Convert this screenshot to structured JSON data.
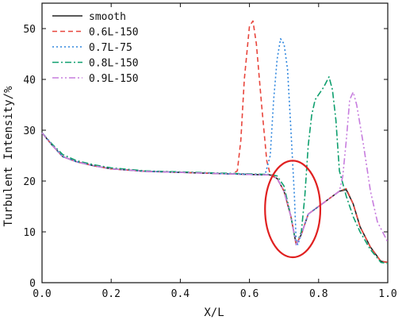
{
  "chart_data": {
    "type": "line",
    "xlabel": "X/L",
    "ylabel": "Turbulent Intensity/%",
    "xlim": [
      0,
      1
    ],
    "ylim": [
      0,
      55
    ],
    "xticks": [
      0,
      0.2,
      0.4,
      0.6,
      0.8,
      1.0
    ],
    "xtick_labels": [
      "0.0",
      "0.2",
      "0.4",
      "0.6",
      "0.8",
      "1.0"
    ],
    "yticks": [
      0,
      10,
      20,
      30,
      40,
      50
    ],
    "ytick_labels": [
      "0",
      "10",
      "20",
      "30",
      "40",
      "50"
    ],
    "grid": false,
    "legend_position": "top-left",
    "series": [
      {
        "name": "smooth",
        "color": "#222222",
        "dash": "solid",
        "x": [
          0,
          0.03,
          0.06,
          0.1,
          0.15,
          0.2,
          0.3,
          0.4,
          0.5,
          0.6,
          0.66,
          0.68,
          0.7,
          0.72,
          0.735,
          0.75,
          0.77,
          0.8,
          0.83,
          0.86,
          0.88,
          0.9,
          0.92,
          0.95,
          0.98,
          1.0
        ],
        "y": [
          29.5,
          27,
          24.8,
          23.8,
          23,
          22.4,
          21.9,
          21.7,
          21.5,
          21.3,
          21.2,
          20.5,
          18,
          13,
          7.5,
          9.5,
          13.5,
          15,
          16.5,
          18,
          18.3,
          15.5,
          11,
          7,
          4.2,
          4
        ]
      },
      {
        "name": "0.6L-150",
        "color": "#e8453c",
        "dash": "6,4",
        "x": [
          0,
          0.03,
          0.06,
          0.1,
          0.15,
          0.2,
          0.3,
          0.4,
          0.5,
          0.55,
          0.565,
          0.575,
          0.585,
          0.6,
          0.61,
          0.62,
          0.635,
          0.65,
          0.66,
          0.68,
          0.7,
          0.72,
          0.735,
          0.75,
          0.77,
          0.8,
          0.83,
          0.86,
          0.88,
          0.9,
          0.92,
          0.95,
          0.98,
          1.0
        ],
        "y": [
          29.5,
          27,
          24.8,
          23.8,
          23,
          22.4,
          21.9,
          21.7,
          21.5,
          21.4,
          22,
          28,
          40,
          50.5,
          51.5,
          47,
          35,
          24,
          21.3,
          20.5,
          18,
          13,
          7.5,
          9.5,
          13.5,
          15,
          16.5,
          18,
          18.5,
          15.5,
          11,
          7,
          4.2,
          4
        ]
      },
      {
        "name": "0.7L-75",
        "color": "#2e86de",
        "dash": "2,3",
        "x": [
          0,
          0.03,
          0.06,
          0.1,
          0.15,
          0.2,
          0.3,
          0.4,
          0.5,
          0.6,
          0.645,
          0.66,
          0.67,
          0.68,
          0.69,
          0.7,
          0.71,
          0.72,
          0.73,
          0.735,
          0.74,
          0.75,
          0.77,
          0.8
        ],
        "y": [
          29.5,
          27,
          24.8,
          23.8,
          23,
          22.4,
          21.9,
          21.7,
          21.5,
          21.3,
          21.2,
          25,
          36,
          44,
          48,
          47,
          42,
          30,
          17,
          8,
          7.5,
          9.5,
          13.5,
          15
        ]
      },
      {
        "name": "0.8L-150",
        "color": "#0e9f6e",
        "dash": "8,3,2,3",
        "x": [
          0,
          0.03,
          0.06,
          0.1,
          0.15,
          0.2,
          0.3,
          0.4,
          0.5,
          0.6,
          0.66,
          0.68,
          0.7,
          0.72,
          0.735,
          0.75,
          0.76,
          0.77,
          0.78,
          0.79,
          0.8,
          0.815,
          0.83,
          0.84,
          0.85,
          0.86,
          0.88,
          0.9,
          0.92,
          0.95,
          0.98,
          1.0
        ],
        "y": [
          29.5,
          27.2,
          25.2,
          24,
          23.2,
          22.6,
          22,
          21.8,
          21.6,
          21.4,
          21.3,
          21,
          19,
          13,
          7.5,
          10,
          17,
          27,
          33,
          36,
          37,
          38.5,
          40.5,
          38,
          32,
          22,
          17,
          13,
          10,
          6.5,
          4,
          3.8
        ]
      },
      {
        "name": "0.9L-150",
        "color": "#c77dde",
        "dash": "8,3,2,3,2,3",
        "x": [
          0,
          0.03,
          0.06,
          0.1,
          0.15,
          0.2,
          0.3,
          0.4,
          0.5,
          0.6,
          0.66,
          0.68,
          0.7,
          0.72,
          0.735,
          0.75,
          0.77,
          0.8,
          0.83,
          0.86,
          0.87,
          0.88,
          0.89,
          0.9,
          0.91,
          0.93,
          0.95,
          0.97,
          1.0
        ],
        "y": [
          29.5,
          27,
          24.8,
          23.8,
          23,
          22.4,
          21.9,
          21.7,
          21.5,
          21.3,
          21.2,
          20.5,
          18,
          13,
          7.5,
          9.5,
          13.5,
          15,
          16.5,
          18,
          21,
          28,
          36,
          37.5,
          35,
          27,
          18,
          12,
          8
        ]
      }
    ],
    "annotations": [
      {
        "type": "ellipse",
        "color": "#e02020",
        "center": [
          0.725,
          14.5
        ],
        "rx": 0.08,
        "ry": 9.5
      }
    ]
  }
}
